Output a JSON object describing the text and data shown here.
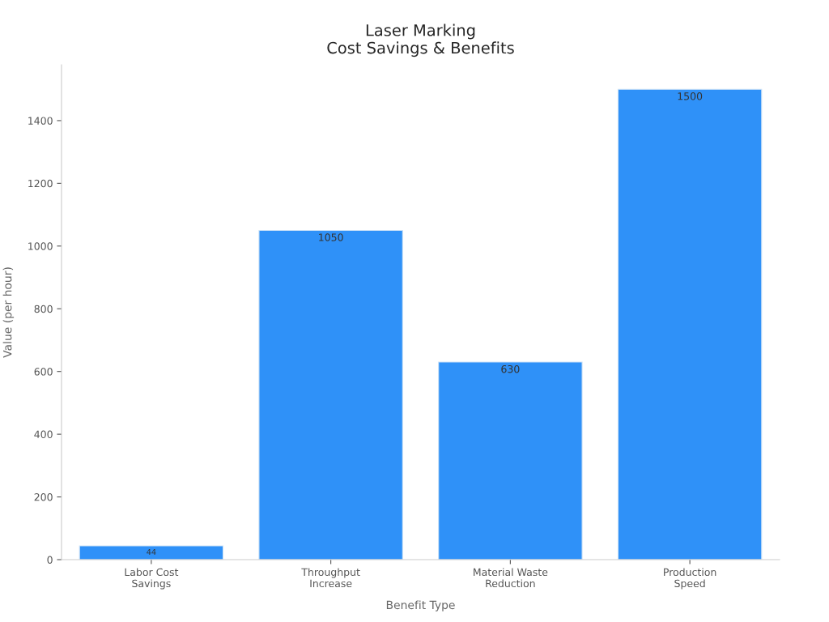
{
  "chart_data": {
    "type": "bar",
    "title": "Laser Marking\nCost Savings & Benefits",
    "xlabel": "Benefit Type",
    "ylabel": "Value (per hour)",
    "categories": [
      "Labor Cost\nSavings",
      "Throughput\nIncrease",
      "Material Waste\nReduction",
      "Production\nSpeed"
    ],
    "values": [
      44,
      1050,
      630,
      1500
    ],
    "color": "#2f91f8",
    "ylim": [
      0,
      1578
    ],
    "yticks": [
      0,
      200,
      400,
      600,
      800,
      1000,
      1200,
      1400
    ],
    "grid": false,
    "legend": false,
    "data_labels": true
  }
}
